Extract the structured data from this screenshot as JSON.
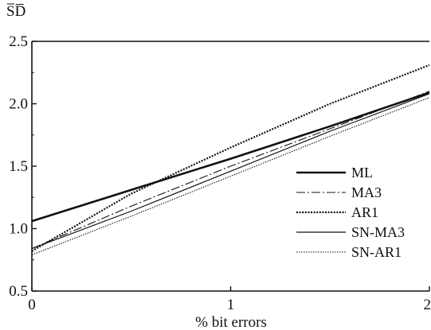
{
  "chart_data": {
    "type": "line",
    "ylabel": "S̅D̅",
    "xlabel": "% bit errors",
    "xlim": [
      0,
      2
    ],
    "ylim": [
      0.5,
      2.5
    ],
    "x_ticks": [
      "0",
      "1",
      "2"
    ],
    "y_ticks": [
      "0.5",
      "1.0",
      "1.5",
      "2.0",
      "2.5"
    ],
    "legend_position": "lower-right",
    "grid": false,
    "series": [
      {
        "name": "ML",
        "style": "solid-thick",
        "x": [
          0,
          0.5,
          1.0,
          1.5,
          2.0
        ],
        "y": [
          1.06,
          1.31,
          1.56,
          1.82,
          2.09
        ]
      },
      {
        "name": "MA3",
        "style": "dash-dot",
        "x": [
          0,
          0.5,
          1.0,
          1.5,
          2.0
        ],
        "y": [
          0.84,
          1.18,
          1.5,
          1.8,
          2.1
        ]
      },
      {
        "name": "AR1",
        "style": "dotted-thick",
        "x": [
          0,
          0.5,
          1.0,
          1.5,
          2.0
        ],
        "y": [
          0.82,
          1.28,
          1.65,
          2.0,
          2.31
        ]
      },
      {
        "name": "SN-MA3",
        "style": "solid-thin",
        "x": [
          0,
          0.5,
          1.0,
          1.5,
          2.0
        ],
        "y": [
          0.84,
          1.14,
          1.46,
          1.78,
          2.08
        ]
      },
      {
        "name": "SN-AR1",
        "style": "dotted-thin",
        "x": [
          0,
          0.5,
          1.0,
          1.5,
          2.0
        ],
        "y": [
          0.79,
          1.1,
          1.42,
          1.74,
          2.05
        ]
      }
    ]
  }
}
